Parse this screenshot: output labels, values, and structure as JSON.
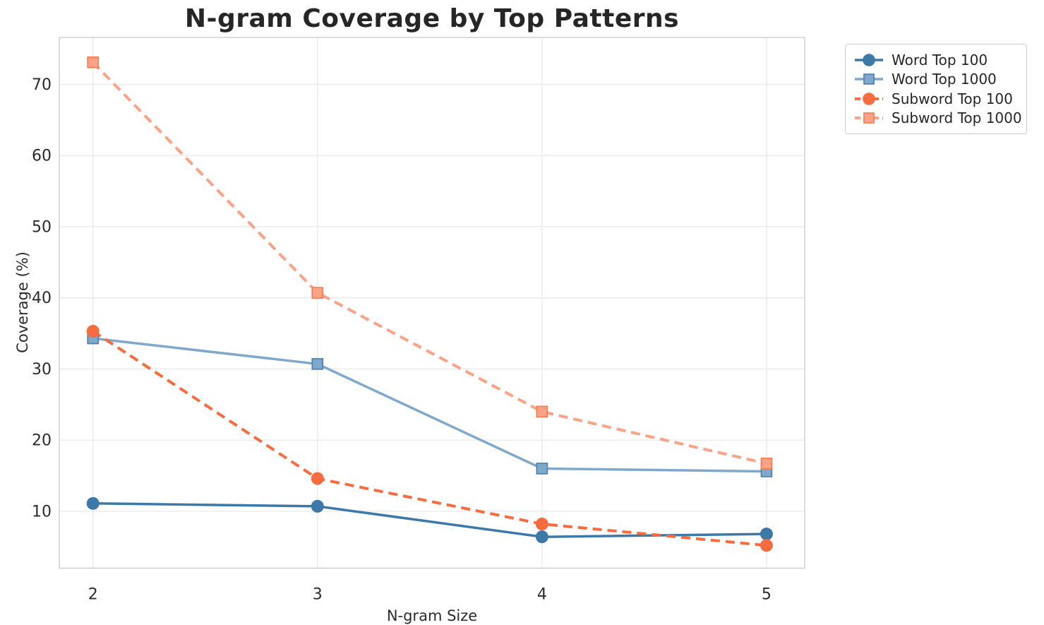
{
  "chart_data": {
    "type": "line",
    "title": "N-gram Coverage by Top Patterns",
    "xlabel": "N-gram Size",
    "ylabel": "Coverage (%)",
    "x": [
      2,
      3,
      4,
      5
    ],
    "series": [
      {
        "name": "Word Top 100",
        "values": [
          11.1,
          10.7,
          6.4,
          6.8
        ],
        "color": "#3c79a8",
        "marker": "circle",
        "marker_edge": "#3c79a8",
        "line_style": "solid"
      },
      {
        "name": "Word Top 1000",
        "values": [
          34.3,
          30.7,
          16.0,
          15.6
        ],
        "color": "#7fa8cb",
        "marker": "square",
        "marker_edge": "#4a7fae",
        "line_style": "solid"
      },
      {
        "name": "Subword Top 100",
        "values": [
          35.3,
          14.6,
          8.2,
          5.2
        ],
        "color": "#f76c3f",
        "marker": "circle",
        "marker_edge": "#f76c3f",
        "line_style": "dashed"
      },
      {
        "name": "Subword Top 1000",
        "values": [
          73.1,
          40.7,
          24.0,
          16.7
        ],
        "color": "#fba287",
        "marker": "square",
        "marker_edge": "#f8784a",
        "line_style": "dashed"
      }
    ],
    "xticks": [
      2,
      3,
      4,
      5
    ],
    "yticks": [
      10,
      20,
      30,
      40,
      50,
      60,
      70
    ],
    "xlim": [
      1.85,
      5.17
    ],
    "ylim": [
      2.0,
      76.6
    ],
    "grid": true,
    "legend_position": "outside-upper-right",
    "style_colors": {
      "grid": "#e9e9e9",
      "spine": "#cccccc",
      "tick_text": "#2b2b2b",
      "title_text": "#262626",
      "background": "#ffffff"
    }
  }
}
